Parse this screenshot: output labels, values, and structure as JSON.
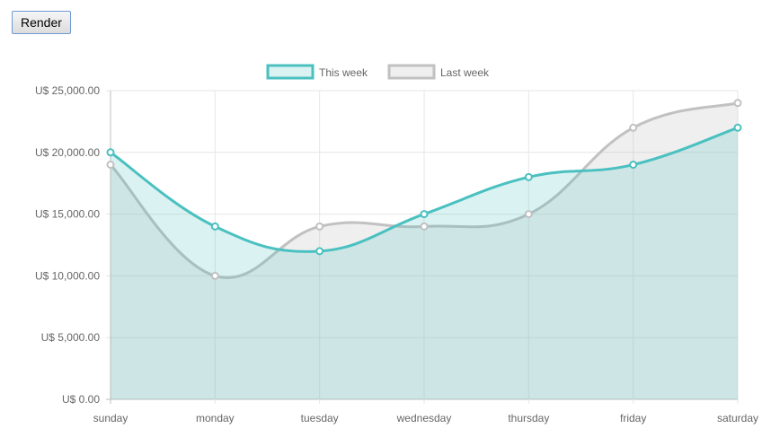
{
  "toolbar": {
    "render_label": "Render"
  },
  "chart_data": {
    "type": "area",
    "categories": [
      "sunday",
      "monday",
      "tuesday",
      "wednesday",
      "thursday",
      "friday",
      "saturday"
    ],
    "series": [
      {
        "name": "Last week",
        "values": [
          19000,
          10000,
          14000,
          14000,
          15000,
          22000,
          24000
        ],
        "stroke": "#c1c1c1",
        "fill": "rgba(193,193,193,0.25)"
      },
      {
        "name": "This week",
        "values": [
          20000,
          14000,
          12000,
          15000,
          18000,
          19000,
          22000
        ],
        "stroke": "#4bc0c0",
        "fill": "rgba(75,192,192,0.2)"
      }
    ],
    "legend": [
      "This week",
      "Last week"
    ],
    "legend_placement": "top",
    "yticks": [
      "U$ 25,000.00",
      "U$ 20,000.00",
      "U$ 15,000.00",
      "U$ 10,000.00",
      "U$ 5,000.00",
      "U$ 0.00"
    ],
    "ylim": [
      0,
      25000
    ],
    "grid": true,
    "title": "",
    "xlabel": "",
    "ylabel": ""
  }
}
